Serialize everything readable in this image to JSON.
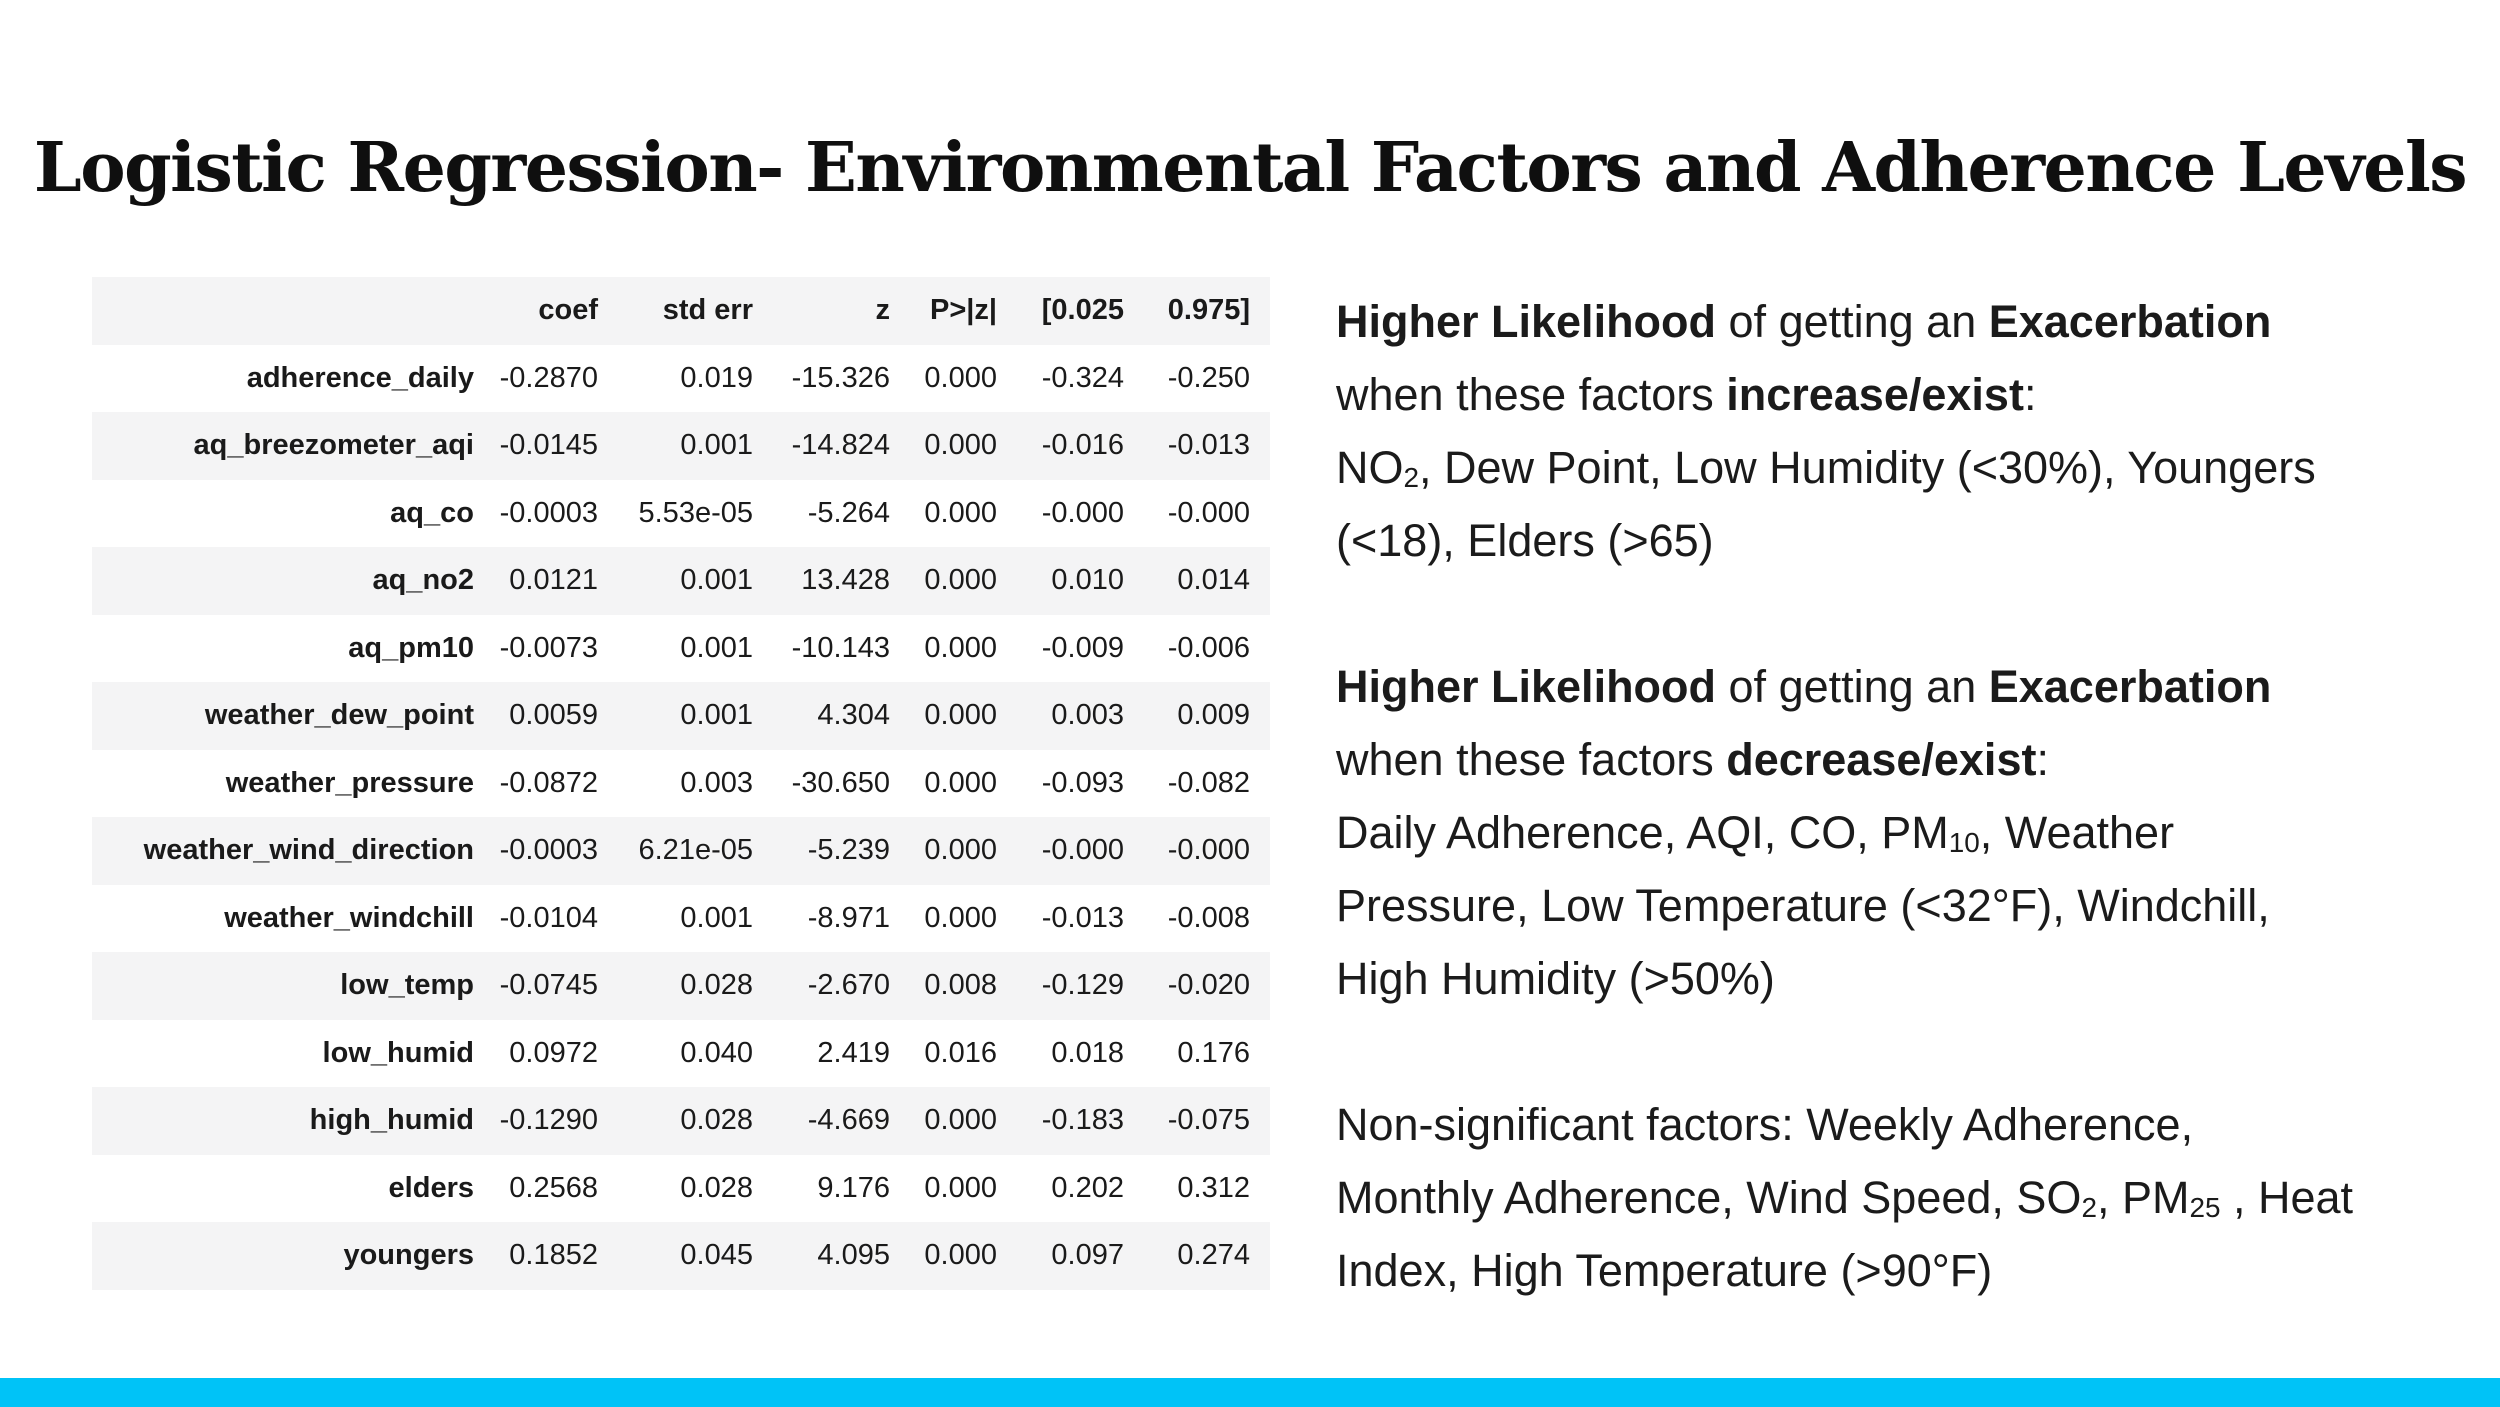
{
  "title": "Logistic Regression- Environmental Factors and Adherence Levels",
  "accent_bar_color": "#00c3f7",
  "table_row_alt_color": "#f4f4f5",
  "table": {
    "columns": [
      "",
      "coef",
      "std err",
      "z",
      "P>|z|",
      "[0.025",
      "0.975]"
    ],
    "rows": [
      {
        "label": "adherence_daily",
        "values": [
          "-0.2870",
          "0.019",
          "-15.326",
          "0.000",
          "-0.324",
          "-0.250"
        ]
      },
      {
        "label": "aq_breezometer_aqi",
        "values": [
          "-0.0145",
          "0.001",
          "-14.824",
          "0.000",
          "-0.016",
          "-0.013"
        ]
      },
      {
        "label": "aq_co",
        "values": [
          "-0.0003",
          "5.53e-05",
          "-5.264",
          "0.000",
          "-0.000",
          "-0.000"
        ]
      },
      {
        "label": "aq_no2",
        "values": [
          "0.0121",
          "0.001",
          "13.428",
          "0.000",
          "0.010",
          "0.014"
        ]
      },
      {
        "label": "aq_pm10",
        "values": [
          "-0.0073",
          "0.001",
          "-10.143",
          "0.000",
          "-0.009",
          "-0.006"
        ]
      },
      {
        "label": "weather_dew_point",
        "values": [
          "0.0059",
          "0.001",
          "4.304",
          "0.000",
          "0.003",
          "0.009"
        ]
      },
      {
        "label": "weather_pressure",
        "values": [
          "-0.0872",
          "0.003",
          "-30.650",
          "0.000",
          "-0.093",
          "-0.082"
        ]
      },
      {
        "label": "weather_wind_direction",
        "values": [
          "-0.0003",
          "6.21e-05",
          "-5.239",
          "0.000",
          "-0.000",
          "-0.000"
        ]
      },
      {
        "label": "weather_windchill",
        "values": [
          "-0.0104",
          "0.001",
          "-8.971",
          "0.000",
          "-0.013",
          "-0.008"
        ]
      },
      {
        "label": "low_temp",
        "values": [
          "-0.0745",
          "0.028",
          "-2.670",
          "0.008",
          "-0.129",
          "-0.020"
        ]
      },
      {
        "label": "low_humid",
        "values": [
          "0.0972",
          "0.040",
          "2.419",
          "0.016",
          "0.018",
          "0.176"
        ]
      },
      {
        "label": "high_humid",
        "values": [
          "-0.1290",
          "0.028",
          "-4.669",
          "0.000",
          "-0.183",
          "-0.075"
        ]
      },
      {
        "label": "elders",
        "values": [
          "0.2568",
          "0.028",
          "9.176",
          "0.000",
          "0.202",
          "0.312"
        ]
      },
      {
        "label": "youngers",
        "values": [
          "0.1852",
          "0.045",
          "4.095",
          "0.000",
          "0.097",
          "0.274"
        ]
      }
    ]
  },
  "notes": [
    {
      "segments": [
        {
          "t": "Higher Likelihood",
          "b": true
        },
        {
          "t": " of getting an "
        },
        {
          "t": "Exacerbation",
          "b": true
        },
        {
          "br": true
        },
        {
          "t": "when these factors "
        },
        {
          "t": "increase/exist",
          "b": true
        },
        {
          "t": ":"
        },
        {
          "br": true
        },
        {
          "t": "NO"
        },
        {
          "t": "2",
          "sub": true
        },
        {
          "t": ", Dew Point, Low Humidity (<30%), Youngers"
        },
        {
          "br": true
        },
        {
          "t": "(<18), Elders (>65)"
        }
      ]
    },
    {
      "segments": [
        {
          "t": "Higher Likelihood",
          "b": true
        },
        {
          "t": " of getting an "
        },
        {
          "t": "Exacerbation",
          "b": true
        },
        {
          "br": true
        },
        {
          "t": "when these factors "
        },
        {
          "t": "decrease/exist",
          "b": true
        },
        {
          "t": ":"
        },
        {
          "br": true
        },
        {
          "t": "Daily Adherence, AQI, CO, PM"
        },
        {
          "t": "10",
          "sub": true
        },
        {
          "t": ", Weather"
        },
        {
          "br": true
        },
        {
          "t": "Pressure, Low Temperature (<32°F), Windchill,"
        },
        {
          "br": true
        },
        {
          "t": "High Humidity (>50%)"
        }
      ]
    },
    {
      "segments": [
        {
          "t": "Non-significant factors: Weekly Adherence,"
        },
        {
          "br": true
        },
        {
          "t": "Monthly Adherence, Wind Speed, SO"
        },
        {
          "t": "2",
          "sub": true
        },
        {
          "t": ", PM"
        },
        {
          "t": "25",
          "sub": true
        },
        {
          "t": " , Heat"
        },
        {
          "br": true
        },
        {
          "t": "Index, High Temperature (>90°F)"
        }
      ]
    }
  ]
}
